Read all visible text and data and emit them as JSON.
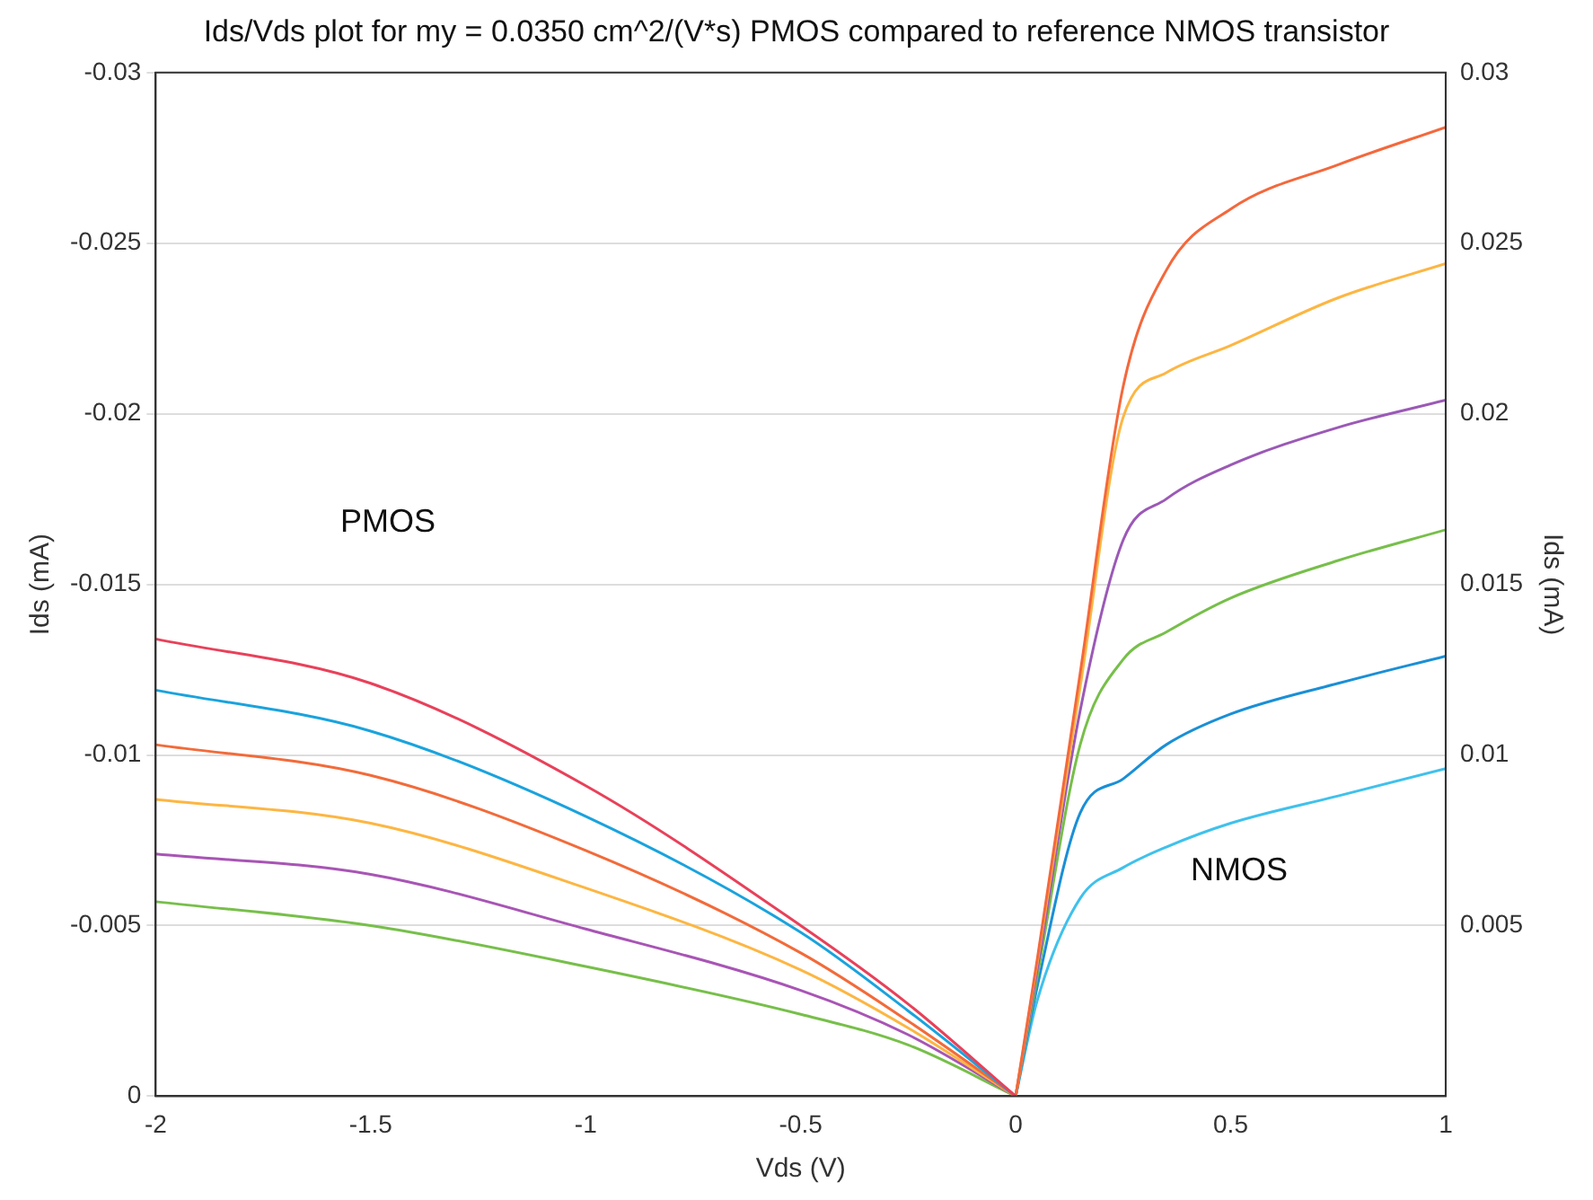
{
  "chart_data": {
    "type": "line",
    "title": "Ids/Vds plot for my = 0.0350 cm^2/(V*s) PMOS compared to reference NMOS transistor",
    "xlabel": "Vds (V)",
    "ylabel": "Ids (mA)",
    "y2label": "Ids (mA)",
    "xlim": [
      -2,
      1
    ],
    "xticks": [
      -2,
      -1.5,
      -1,
      -0.5,
      0,
      0.5,
      1
    ],
    "ylim": [
      0,
      -0.03
    ],
    "yticks": [
      0,
      -0.005,
      -0.01,
      -0.015,
      -0.02,
      -0.025,
      -0.03
    ],
    "y2lim": [
      0,
      0.03
    ],
    "y2ticks": [
      0.005,
      0.01,
      0.015,
      0.02,
      0.025,
      0.03
    ],
    "grid": "y",
    "marker": "none",
    "line_style": "solid",
    "legend": false,
    "annotations": [
      "PMOS",
      "NMOS"
    ],
    "series": [
      {
        "color": "#e8415a",
        "x": [
          -2,
          -1.5,
          -1,
          -0.5,
          -0.25,
          0
        ],
        "values": [
          -0.0134,
          -0.0121,
          -0.0091,
          -0.005,
          -0.0027,
          0
        ]
      },
      {
        "color": "#1aa3dd",
        "x": [
          -2,
          -1.5,
          -1,
          -0.5,
          -0.25,
          0
        ],
        "values": [
          -0.0119,
          -0.0107,
          -0.0082,
          -0.0048,
          -0.0025,
          0
        ]
      },
      {
        "color": "#f26b3a",
        "x": [
          -2,
          -1.5,
          -1,
          -0.5,
          -0.25,
          0
        ],
        "values": [
          -0.0103,
          -0.0094,
          -0.0072,
          -0.0042,
          -0.0022,
          0
        ]
      },
      {
        "color": "#fdb642",
        "x": [
          -2,
          -1.5,
          -1,
          -0.5,
          -0.25,
          0
        ],
        "values": [
          -0.0087,
          -0.008,
          -0.0061,
          -0.0037,
          -0.002,
          0
        ]
      },
      {
        "color": "#a855b5",
        "x": [
          -2,
          -1.5,
          -1,
          -0.5,
          -0.25,
          0
        ],
        "values": [
          -0.0071,
          -0.0065,
          -0.0049,
          -0.0031,
          -0.0018,
          0
        ]
      },
      {
        "color": "#77bf4a",
        "x": [
          -2,
          -1.5,
          -1,
          -0.5,
          -0.25,
          0
        ],
        "values": [
          -0.0057,
          -0.005,
          -0.0038,
          -0.0024,
          -0.0015,
          0
        ]
      },
      {
        "color": "#f4683c",
        "axis": "y2",
        "x": [
          0,
          0.05,
          0.15,
          0.25,
          0.35,
          0.5,
          0.75,
          1
        ],
        "values": [
          0,
          0.004,
          0.0124,
          0.0208,
          0.0242,
          0.026,
          0.0273,
          0.0284
        ]
      },
      {
        "color": "#fdb642",
        "axis": "y2",
        "x": [
          0,
          0.05,
          0.15,
          0.25,
          0.35,
          0.5,
          0.75,
          1
        ],
        "values": [
          0,
          0.0039,
          0.012,
          0.0199,
          0.0212,
          0.022,
          0.0234,
          0.0244
        ]
      },
      {
        "color": "#9b59b6",
        "axis": "y2",
        "x": [
          0,
          0.05,
          0.15,
          0.25,
          0.35,
          0.5,
          0.75,
          1
        ],
        "values": [
          0,
          0.0037,
          0.0113,
          0.0163,
          0.0175,
          0.0185,
          0.0196,
          0.0204
        ]
      },
      {
        "color": "#77bf4a",
        "axis": "y2",
        "x": [
          0,
          0.05,
          0.15,
          0.25,
          0.35,
          0.5,
          0.75,
          1
        ],
        "values": [
          0,
          0.0035,
          0.0103,
          0.0128,
          0.0136,
          0.0146,
          0.0157,
          0.0166
        ]
      },
      {
        "color": "#1a8fd6",
        "axis": "y2",
        "x": [
          0,
          0.05,
          0.15,
          0.25,
          0.35,
          0.5,
          0.75,
          1
        ],
        "values": [
          0,
          0.0032,
          0.0083,
          0.0093,
          0.0103,
          0.0112,
          0.0121,
          0.0129
        ]
      },
      {
        "color": "#3fc1ec",
        "axis": "y2",
        "x": [
          0,
          0.05,
          0.15,
          0.25,
          0.35,
          0.5,
          0.75,
          1
        ],
        "values": [
          0,
          0.0028,
          0.0058,
          0.0067,
          0.0073,
          0.008,
          0.0088,
          0.0096
        ]
      }
    ]
  }
}
